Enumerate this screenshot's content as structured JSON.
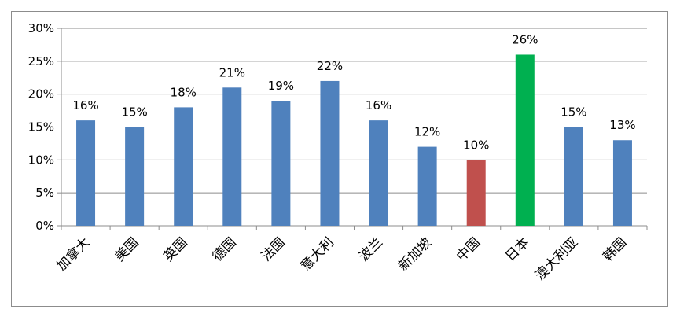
{
  "chart_data": {
    "type": "bar",
    "categories": [
      "加拿大",
      "美国",
      "英国",
      "德国",
      "法国",
      "意大利",
      "波兰",
      "新加坡",
      "中国",
      "日本",
      "澳大利亚",
      "韩国"
    ],
    "values": [
      16,
      15,
      18,
      21,
      19,
      22,
      16,
      12,
      10,
      26,
      15,
      13
    ],
    "data_labels": [
      "16%",
      "15%",
      "18%",
      "21%",
      "19%",
      "22%",
      "16%",
      "12%",
      "10%",
      "26%",
      "15%",
      "13%"
    ],
    "bar_colors": [
      "#4f81bd",
      "#4f81bd",
      "#4f81bd",
      "#4f81bd",
      "#4f81bd",
      "#4f81bd",
      "#4f81bd",
      "#4f81bd",
      "#c0504d",
      "#00b050",
      "#4f81bd",
      "#4f81bd"
    ],
    "ylim": [
      0,
      30
    ],
    "yticks": [
      0,
      5,
      10,
      15,
      20,
      25,
      30
    ],
    "ytick_labels": [
      "0%",
      "5%",
      "10%",
      "15%",
      "20%",
      "25%",
      "30%"
    ],
    "grid": true,
    "legend": "none",
    "title": "",
    "xlabel": "",
    "ylabel": ""
  }
}
